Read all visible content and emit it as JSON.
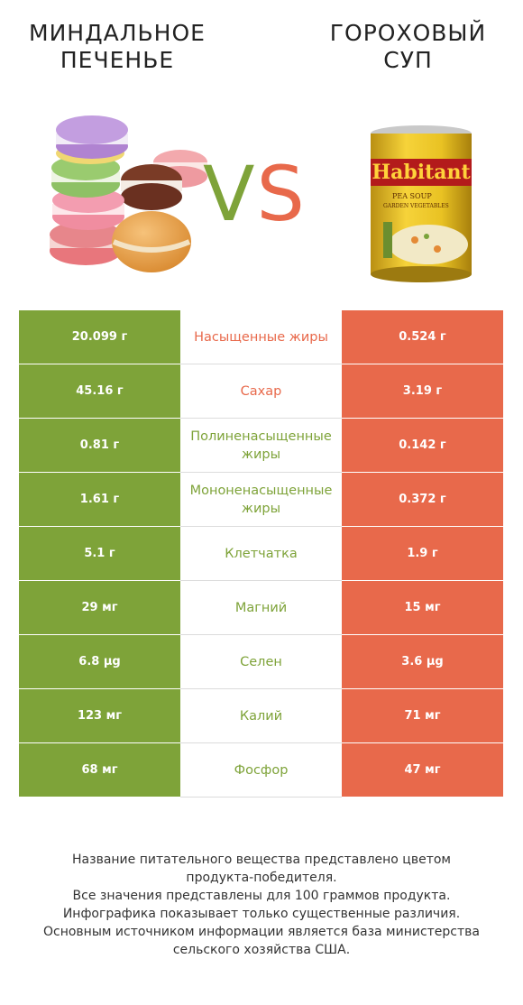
{
  "header": {
    "left_title": "МИНДАЛЬНОЕ\nПЕЧЕНЬЕ",
    "right_title": "ГОРОХОВЫЙ\nСУП",
    "vs_v": "V",
    "vs_s": "S"
  },
  "colors": {
    "left_accent": "#7ea339",
    "right_accent": "#e8694b"
  },
  "can_label": {
    "brand": "Habitant",
    "line1": "PEA SOUP",
    "line2": "GARDEN VEGETABLES"
  },
  "rows": [
    {
      "left": "20.099 г",
      "label": "Насыщенные жиры",
      "right": "0.524 г",
      "winner": "right"
    },
    {
      "left": "45.16 г",
      "label": "Сахар",
      "right": "3.19 г",
      "winner": "right"
    },
    {
      "left": "0.81 г",
      "label": "Полиненасыщенные жиры",
      "right": "0.142 г",
      "winner": "left"
    },
    {
      "left": "1.61 г",
      "label": "Мононенасыщенные жиры",
      "right": "0.372 г",
      "winner": "left"
    },
    {
      "left": "5.1 г",
      "label": "Клетчатка",
      "right": "1.9 г",
      "winner": "left"
    },
    {
      "left": "29 мг",
      "label": "Магний",
      "right": "15 мг",
      "winner": "left"
    },
    {
      "left": "6.8 µg",
      "label": "Селен",
      "right": "3.6 µg",
      "winner": "left"
    },
    {
      "left": "123 мг",
      "label": "Калий",
      "right": "71 мг",
      "winner": "left"
    },
    {
      "left": "68 мг",
      "label": "Фосфор",
      "right": "47 мг",
      "winner": "left"
    }
  ],
  "footer": {
    "line1": "Название питательного вещества представлено цветом",
    "line2": "продукта-победителя.",
    "line3": "Все значения представлены для 100 граммов продукта.",
    "line4": "Инфографика показывает только существенные различия.",
    "line5": "Основным источником информации является база министерства",
    "line6": "сельского хозяйства США."
  }
}
